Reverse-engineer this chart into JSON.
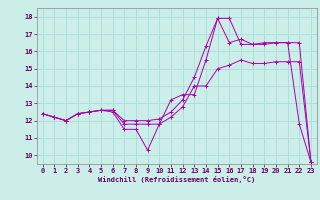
{
  "xlabel": "Windchill (Refroidissement éolien,°C)",
  "background_color": "#cceee8",
  "grid_color": "#aaddda",
  "line_color": "#aa00aa",
  "xlim": [
    -0.5,
    23.5
  ],
  "ylim": [
    9.5,
    18.5
  ],
  "yticks": [
    10,
    11,
    12,
    13,
    14,
    15,
    16,
    17,
    18
  ],
  "xticks": [
    0,
    1,
    2,
    3,
    4,
    5,
    6,
    7,
    8,
    9,
    10,
    11,
    12,
    13,
    14,
    15,
    16,
    17,
    18,
    19,
    20,
    21,
    22,
    23
  ],
  "line1_x": [
    0,
    1,
    2,
    3,
    4,
    5,
    6,
    7,
    8,
    9,
    10,
    11,
    12,
    13,
    14,
    15,
    16,
    17,
    18,
    19,
    20,
    21,
    22,
    23
  ],
  "line1_y": [
    12.4,
    12.2,
    12.0,
    12.4,
    12.5,
    12.6,
    12.5,
    11.5,
    11.5,
    10.3,
    11.8,
    13.2,
    13.5,
    13.5,
    15.5,
    17.9,
    17.9,
    16.4,
    16.4,
    16.4,
    16.5,
    16.5,
    11.8,
    9.6
  ],
  "line2_x": [
    0,
    1,
    2,
    3,
    4,
    5,
    6,
    7,
    8,
    9,
    10,
    11,
    12,
    13,
    14,
    15,
    16,
    17,
    18,
    19,
    20,
    21,
    22,
    23
  ],
  "line2_y": [
    12.4,
    12.2,
    12.0,
    12.4,
    12.5,
    12.6,
    12.6,
    11.8,
    11.8,
    11.8,
    11.8,
    12.2,
    12.8,
    14.0,
    14.0,
    15.0,
    15.2,
    15.5,
    15.3,
    15.3,
    15.4,
    15.4,
    15.4,
    9.6
  ],
  "line3_x": [
    0,
    1,
    2,
    3,
    4,
    5,
    6,
    7,
    8,
    9,
    10,
    11,
    12,
    13,
    14,
    15,
    16,
    17,
    18,
    19,
    20,
    21,
    22,
    23
  ],
  "line3_y": [
    12.4,
    12.2,
    12.0,
    12.4,
    12.5,
    12.6,
    12.6,
    12.0,
    12.0,
    12.0,
    12.1,
    12.5,
    13.2,
    14.5,
    16.3,
    17.9,
    16.5,
    16.7,
    16.4,
    16.5,
    16.5,
    16.5,
    16.5,
    9.6
  ]
}
